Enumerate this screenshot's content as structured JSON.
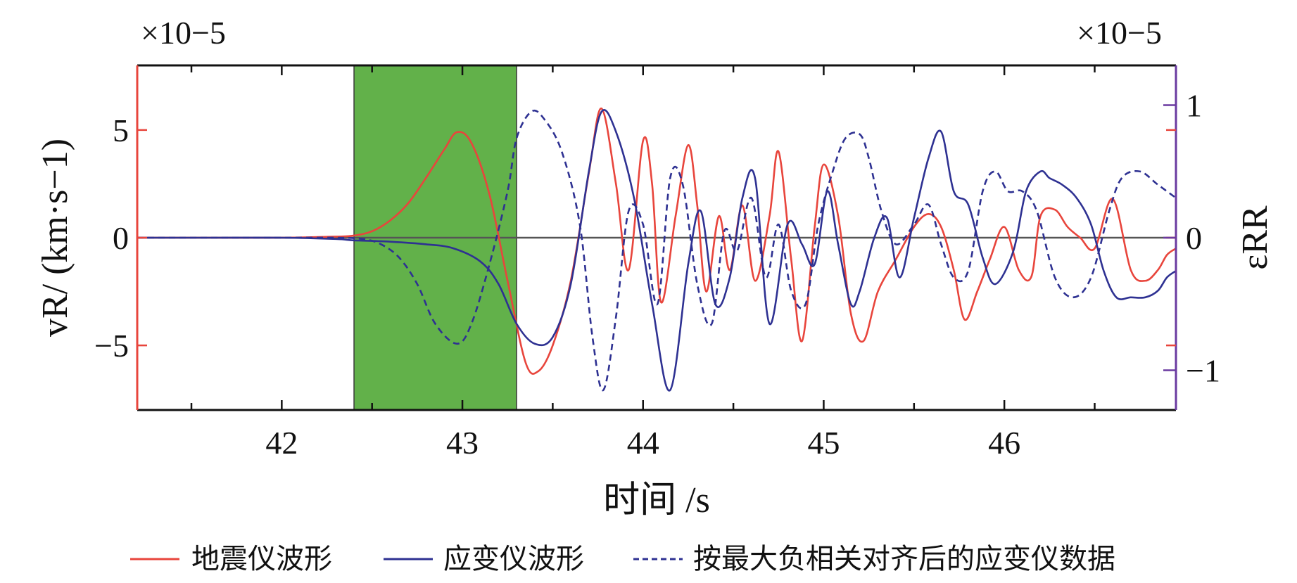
{
  "chart_data": {
    "type": "line",
    "xlabel": "时间 /s",
    "ylabel_left": "vR/ (km·s−1)",
    "ylabel_right": "εRR",
    "left_multiplier": "×10−5",
    "right_multiplier": "×10−5",
    "xlim": [
      41.2,
      46.95
    ],
    "ylim_left": [
      -8,
      8
    ],
    "ylim_right": [
      -1.3,
      1.3
    ],
    "x_ticks": [
      42,
      43,
      44,
      45,
      46
    ],
    "x_tick_labels": [
      "42",
      "43",
      "44",
      "45",
      "46"
    ],
    "left_ticks": [
      5,
      0,
      -5
    ],
    "left_tick_labels": [
      "5",
      "0",
      "−5"
    ],
    "right_ticks": [
      1,
      0,
      -1
    ],
    "right_tick_labels": [
      "1",
      "0",
      "−1"
    ],
    "highlight_region": {
      "x_start": 42.4,
      "x_end": 43.3,
      "color": "#62b14a"
    },
    "zero_line": true,
    "legend_position": "bottom",
    "series": [
      {
        "name": "地震仪波形",
        "axis": "left",
        "color": "#e8453c",
        "style": "solid",
        "x": [
          41.2,
          41.6,
          42.0,
          42.3,
          42.4,
          42.5,
          42.6,
          42.7,
          42.8,
          42.9,
          42.97,
          43.05,
          43.15,
          43.25,
          43.35,
          43.42,
          43.5,
          43.6,
          43.7,
          43.77,
          43.85,
          43.92,
          44.0,
          44.05,
          44.1,
          44.18,
          44.25,
          44.3,
          44.35,
          44.42,
          44.48,
          44.55,
          44.62,
          44.7,
          44.75,
          44.82,
          44.88,
          44.95,
          45.0,
          45.08,
          45.15,
          45.22,
          45.3,
          45.4,
          45.5,
          45.58,
          45.65,
          45.72,
          45.78,
          45.85,
          45.92,
          46.0,
          46.08,
          46.15,
          46.2,
          46.28,
          46.35,
          46.42,
          46.5,
          46.6,
          46.7,
          46.78,
          46.85,
          46.9,
          46.95
        ],
        "values": [
          0,
          0,
          0,
          0.05,
          0.1,
          0.3,
          0.8,
          1.6,
          2.8,
          4.1,
          4.9,
          4.4,
          2.0,
          -2.0,
          -5.8,
          -6.2,
          -5.0,
          -2.0,
          3.0,
          6.0,
          2.5,
          -1.5,
          4.5,
          2.5,
          -3.0,
          1.0,
          4.3,
          1.5,
          -2.5,
          1.0,
          -1.5,
          1.5,
          -2.0,
          1.0,
          4.0,
          -1.0,
          -4.8,
          0.5,
          3.4,
          1.0,
          -3.5,
          -4.8,
          -2.5,
          -1.0,
          0.5,
          1.1,
          0.5,
          -1.5,
          -3.8,
          -2.5,
          -1.0,
          0.5,
          -1.5,
          -1.8,
          1.0,
          1.3,
          0.5,
          0.0,
          -0.5,
          1.8,
          -1.5,
          -2.0,
          -1.5,
          -0.8,
          -0.5
        ]
      },
      {
        "name": "应变仪波形",
        "axis": "right",
        "color": "#2e3192",
        "style": "solid",
        "x": [
          41.2,
          41.6,
          42.0,
          42.3,
          42.4,
          42.6,
          42.8,
          42.95,
          43.1,
          43.2,
          43.3,
          43.4,
          43.5,
          43.6,
          43.7,
          43.77,
          43.85,
          43.95,
          44.05,
          44.15,
          44.25,
          44.32,
          44.4,
          44.48,
          44.55,
          44.62,
          44.7,
          44.8,
          44.88,
          44.95,
          45.02,
          45.08,
          45.15,
          45.2,
          45.28,
          45.35,
          45.42,
          45.5,
          45.58,
          45.65,
          45.72,
          45.8,
          45.88,
          45.95,
          46.05,
          46.12,
          46.2,
          46.25,
          46.32,
          46.4,
          46.48,
          46.55,
          46.62,
          46.7,
          46.78,
          46.85,
          46.9,
          46.95
        ],
        "values": [
          0,
          0,
          0,
          -0.01,
          -0.02,
          -0.03,
          -0.05,
          -0.08,
          -0.18,
          -0.35,
          -0.65,
          -0.8,
          -0.75,
          -0.35,
          0.5,
          0.95,
          0.8,
          0.3,
          -0.5,
          -1.15,
          -0.2,
          0.2,
          -0.5,
          -0.3,
          0.3,
          0.45,
          -0.65,
          0.1,
          -0.05,
          -0.2,
          0.35,
          -0.05,
          -0.5,
          -0.4,
          0.0,
          0.15,
          -0.3,
          0.15,
          0.6,
          0.8,
          0.35,
          0.25,
          -0.15,
          -0.35,
          -0.1,
          0.35,
          0.5,
          0.45,
          0.4,
          0.3,
          0.1,
          -0.25,
          -0.45,
          -0.45,
          -0.45,
          -0.4,
          -0.3,
          -0.25
        ]
      },
      {
        "name": "按最大负相关对齐后的应变仪数据",
        "axis": "right",
        "color": "#2e3192",
        "style": "dashed",
        "x": [
          41.2,
          41.6,
          42.0,
          42.3,
          42.45,
          42.55,
          42.65,
          42.75,
          42.85,
          42.97,
          43.05,
          43.15,
          43.25,
          43.3,
          43.38,
          43.45,
          43.55,
          43.65,
          43.72,
          43.78,
          43.85,
          43.92,
          44.0,
          44.08,
          44.15,
          44.22,
          44.3,
          44.38,
          44.45,
          44.52,
          44.6,
          44.68,
          44.75,
          44.82,
          44.9,
          44.97,
          45.05,
          45.12,
          45.2,
          45.25,
          45.32,
          45.4,
          45.5,
          45.58,
          45.65,
          45.72,
          45.8,
          45.88,
          45.95,
          46.02,
          46.1,
          46.18,
          46.28,
          46.38,
          46.48,
          46.58,
          46.65,
          46.75,
          46.85,
          46.95
        ],
        "values": [
          0,
          0,
          0,
          0,
          -0.01,
          -0.05,
          -0.15,
          -0.35,
          -0.65,
          -0.8,
          -0.65,
          -0.2,
          0.35,
          0.75,
          0.95,
          0.9,
          0.65,
          0.1,
          -0.75,
          -1.15,
          -0.6,
          0.2,
          0.1,
          -0.5,
          0.45,
          0.4,
          -0.35,
          -0.65,
          0.05,
          -0.1,
          0.3,
          -0.3,
          0.1,
          -0.4,
          -0.5,
          0.1,
          0.5,
          0.75,
          0.78,
          0.6,
          0.2,
          -0.05,
          0.1,
          0.25,
          -0.05,
          -0.3,
          -0.25,
          0.35,
          0.5,
          0.35,
          0.35,
          0.2,
          -0.3,
          -0.45,
          -0.3,
          0.2,
          0.45,
          0.5,
          0.4,
          0.3
        ]
      }
    ]
  }
}
